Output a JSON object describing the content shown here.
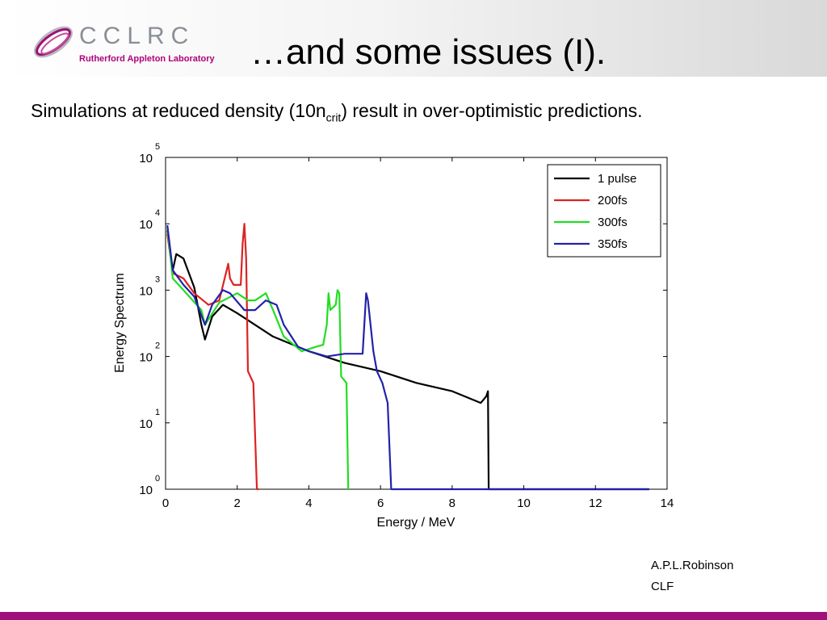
{
  "slide": {
    "logo_name": "CCLRC",
    "logo_sub": "Rutherford Appleton Laboratory",
    "title": "…and some issues (I).",
    "subtitle_pre": "Simulations at reduced density (10n",
    "subtitle_sub": "crit",
    "subtitle_post": ") result in over-optimistic predictions.",
    "author": "A.P.L.Robinson",
    "org": "CLF",
    "accent_color": "#a0107a"
  },
  "chart_data": {
    "type": "line",
    "title": "",
    "xlabel": "Energy / MeV",
    "ylabel": "Energy Spectrum",
    "xlim": [
      0,
      14
    ],
    "ylim_log10": [
      0,
      5
    ],
    "y_scale": "log",
    "x_ticks": [
      "0",
      "2",
      "4",
      "6",
      "8",
      "10",
      "12",
      "14"
    ],
    "y_ticks": [
      {
        "base": "10",
        "exp": "0"
      },
      {
        "base": "10",
        "exp": "1"
      },
      {
        "base": "10",
        "exp": "2"
      },
      {
        "base": "10",
        "exp": "3"
      },
      {
        "base": "10",
        "exp": "4"
      },
      {
        "base": "10",
        "exp": "5"
      }
    ],
    "grid": false,
    "legend_position": "top-right",
    "series": [
      {
        "name": "1 pulse",
        "color": "#000000",
        "x": [
          0.05,
          0.2,
          0.3,
          0.5,
          0.8,
          1.0,
          1.1,
          1.3,
          1.6,
          2.0,
          2.5,
          3.0,
          4.0,
          5.0,
          6.0,
          7.0,
          8.0,
          8.8,
          8.95,
          9.0,
          9.02,
          9.05,
          9.3,
          13.5
        ],
        "y": [
          8000,
          2000,
          3500,
          3000,
          1100,
          300,
          180,
          400,
          600,
          450,
          300,
          200,
          120,
          80,
          60,
          40,
          30,
          20,
          25,
          30,
          1,
          1,
          1,
          1
        ]
      },
      {
        "name": "200fs",
        "color": "#dd2222",
        "x": [
          0.05,
          0.2,
          0.5,
          0.8,
          1.2,
          1.5,
          1.75,
          1.8,
          1.9,
          2.1,
          2.15,
          2.2,
          2.25,
          2.3,
          2.45,
          2.55,
          2.6
        ],
        "y": [
          7000,
          1800,
          1500,
          900,
          600,
          700,
          2500,
          1500,
          1200,
          1200,
          5000,
          10000,
          3000,
          60,
          40,
          1,
          1
        ]
      },
      {
        "name": "300fs",
        "color": "#22dd22",
        "x": [
          0.05,
          0.2,
          0.5,
          1.0,
          1.1,
          1.5,
          2.0,
          2.3,
          2.5,
          2.8,
          3.0,
          3.3,
          3.8,
          4.2,
          4.4,
          4.5,
          4.55,
          4.6,
          4.75,
          4.8,
          4.85,
          4.9,
          5.05,
          5.1
        ],
        "y": [
          9000,
          1500,
          1000,
          500,
          300,
          650,
          900,
          700,
          700,
          900,
          500,
          200,
          120,
          140,
          150,
          300,
          900,
          500,
          600,
          1000,
          900,
          50,
          40,
          1
        ]
      },
      {
        "name": "350fs",
        "color": "#2222aa",
        "x": [
          0.05,
          0.2,
          0.5,
          0.8,
          1.1,
          1.3,
          1.6,
          1.8,
          2.2,
          2.5,
          2.8,
          3.1,
          3.3,
          3.7,
          4.0,
          4.5,
          5.0,
          5.5,
          5.6,
          5.65,
          5.8,
          5.9,
          6.05,
          6.2,
          6.3,
          13.5
        ],
        "y": [
          9500,
          2000,
          1200,
          800,
          300,
          600,
          1000,
          900,
          500,
          500,
          700,
          600,
          300,
          140,
          120,
          100,
          110,
          110,
          900,
          700,
          120,
          60,
          40,
          20,
          1,
          1
        ]
      }
    ]
  }
}
